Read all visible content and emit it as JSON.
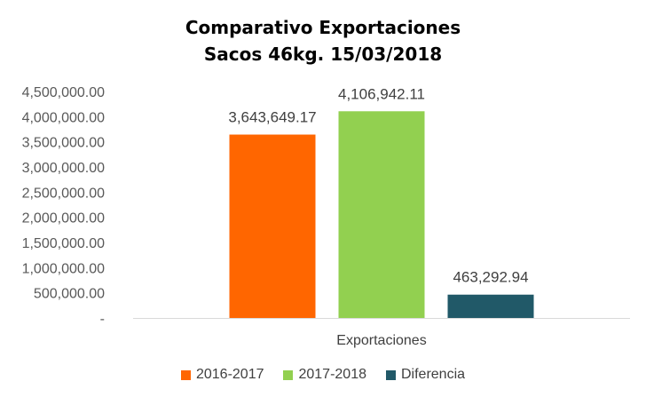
{
  "chart_data": {
    "type": "bar",
    "title": "Comparativo Exportaciones",
    "subtitle": "Sacos 46kg. 15/03/2018",
    "categories": [
      "Exportaciones"
    ],
    "series": [
      {
        "name": "2016-2017",
        "values": [
          3643649.17
        ],
        "label": "3,643,649.17",
        "color": "#ff6600"
      },
      {
        "name": "2017-2018",
        "values": [
          4106942.11
        ],
        "label": "4,106,942.11",
        "color": "#92d050"
      },
      {
        "name": "Diferencia",
        "values": [
          463292.94
        ],
        "label": "463,292.94",
        "color": "#215968"
      }
    ],
    "ylim": [
      0,
      4500000
    ],
    "yticks": [
      0,
      500000,
      1000000,
      1500000,
      2000000,
      2500000,
      3000000,
      3500000,
      4000000,
      4500000
    ],
    "ytick_labels": [
      "-",
      "500,000.00",
      "1,000,000.00",
      "1,500,000.00",
      "2,000,000.00",
      "2,500,000.00",
      "3,000,000.00",
      "3,500,000.00",
      "4,000,000.00",
      "4,500,000.00"
    ],
    "grid": false,
    "legend_position": "bottom"
  }
}
